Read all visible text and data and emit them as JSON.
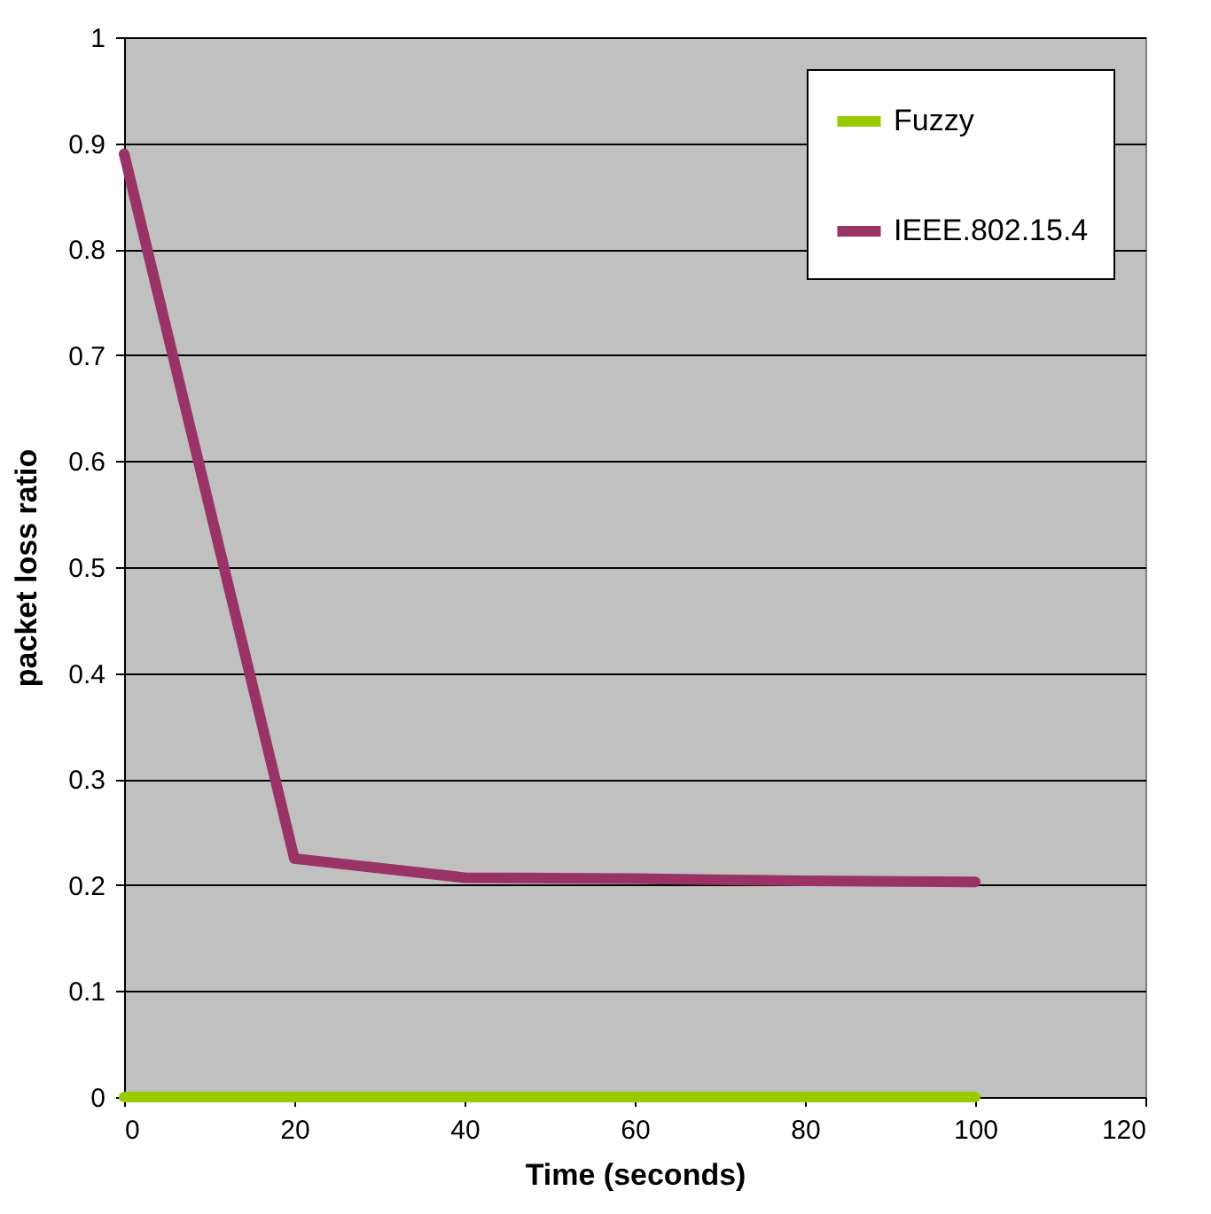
{
  "chart_data": {
    "type": "line",
    "xlabel": "Time (seconds)",
    "ylabel": "packet loss ratio",
    "x": [
      0,
      20,
      40,
      60,
      80,
      100
    ],
    "series": [
      {
        "name": "Fuzzy",
        "color": "#99cc00",
        "values": [
          0,
          0,
          0,
          0,
          0,
          0
        ]
      },
      {
        "name": "IEEE.802.15.4",
        "color": "#993366",
        "values": [
          0.89,
          0.225,
          0.207,
          0.206,
          0.204,
          0.203
        ]
      }
    ],
    "xlim": [
      0,
      120
    ],
    "xticks": [
      0,
      20,
      40,
      60,
      80,
      100,
      120
    ],
    "ylim": [
      0,
      1
    ],
    "yticks": [
      0,
      0.1,
      0.2,
      0.3,
      0.4,
      0.5,
      0.6,
      0.7,
      0.8,
      0.9,
      1
    ],
    "grid": "y",
    "legend": "top right",
    "marker": "none",
    "line_style": "solid"
  }
}
